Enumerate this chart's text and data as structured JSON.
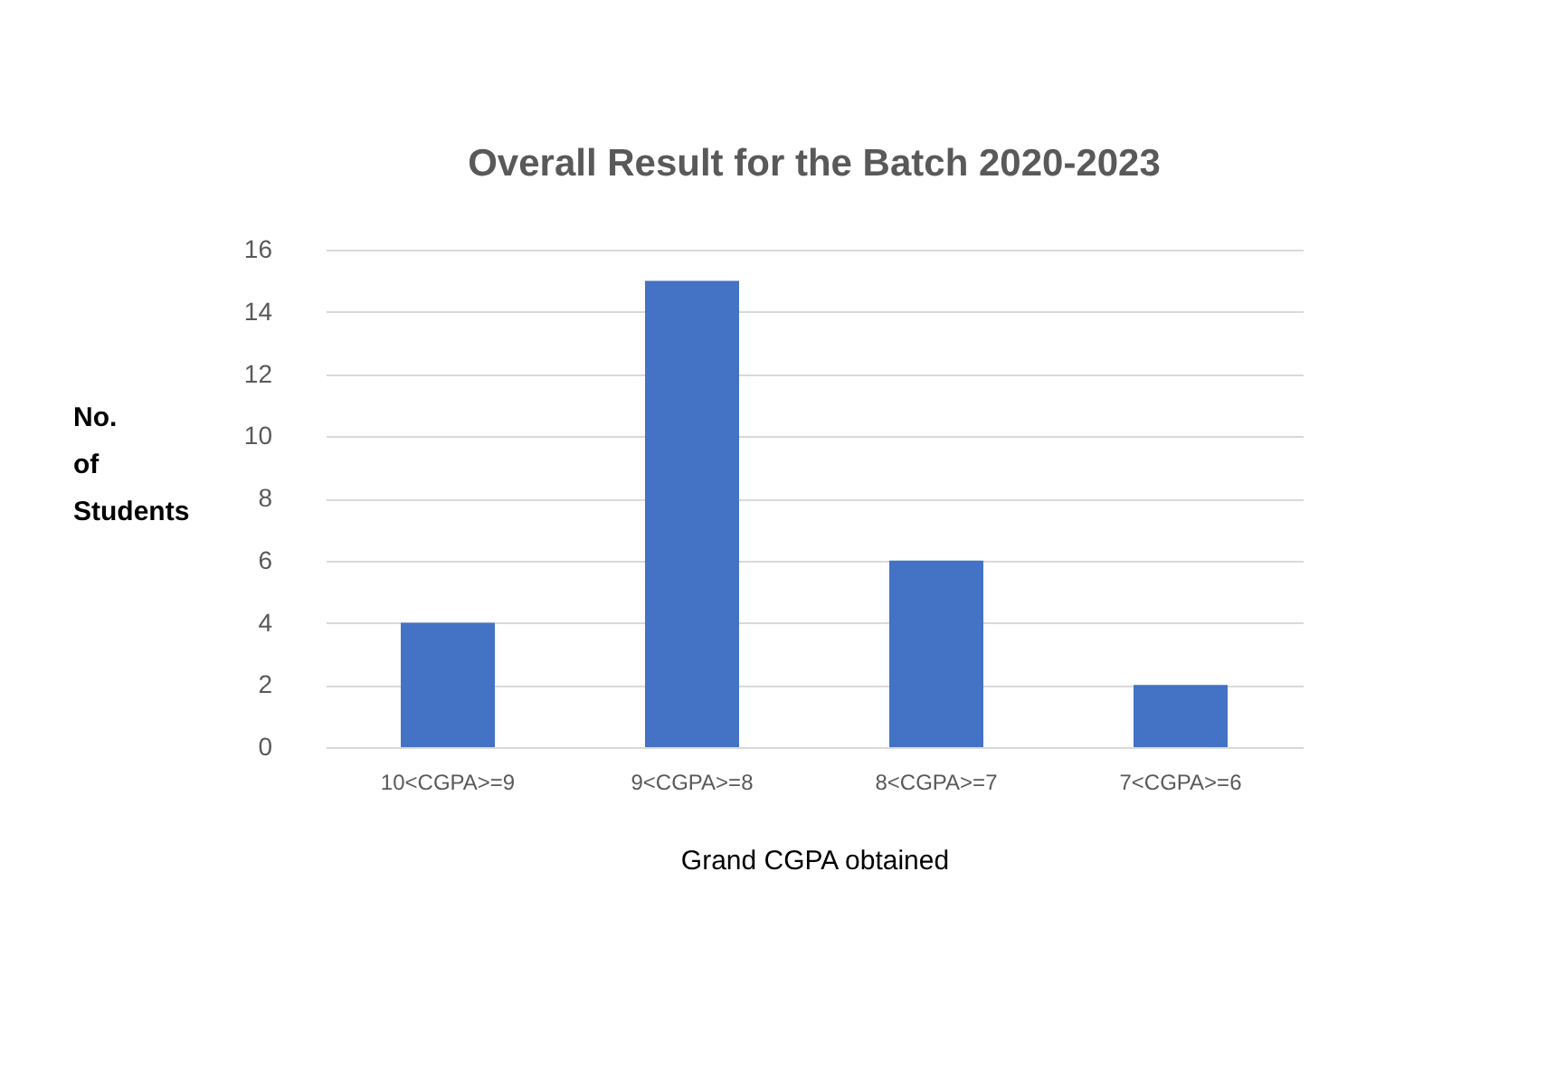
{
  "chart_data": {
    "type": "bar",
    "title": "Overall Result for the Batch 2020-2023",
    "xlabel": "Grand CGPA obtained",
    "ylabel": "No. of Students",
    "categories": [
      "10<CGPA>=9",
      "9<CGPA>=8",
      "8<CGPA>=7",
      "7<CGPA>=6"
    ],
    "values": [
      4,
      15,
      6,
      2
    ],
    "color": "#4472c4",
    "ylim": [
      0,
      16
    ],
    "yticks": [
      0,
      2,
      4,
      6,
      8,
      10,
      12,
      14,
      16
    ],
    "grid": "y"
  }
}
